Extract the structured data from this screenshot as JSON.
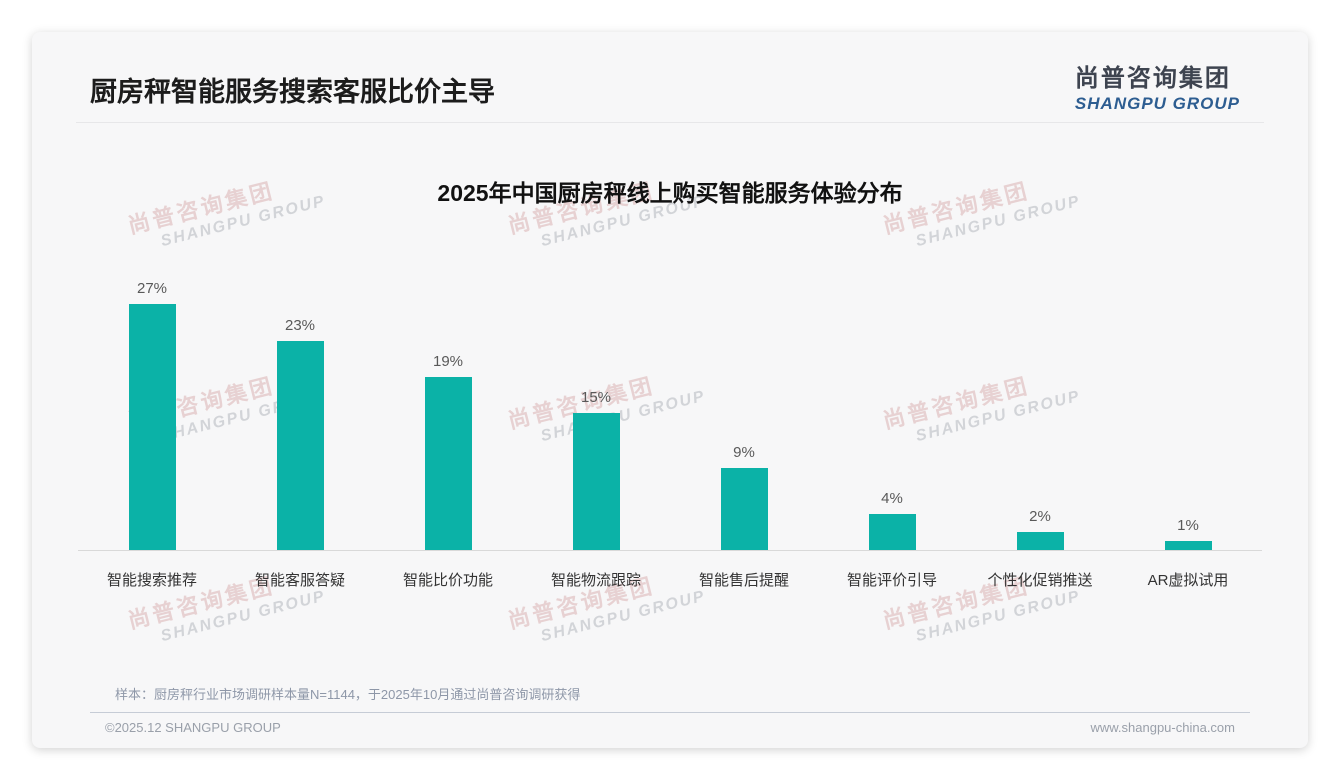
{
  "header": {
    "title": "厨房秤智能服务搜索客服比价主导"
  },
  "logo": {
    "cn": "尚普咨询集团",
    "en": "SHANGPU GROUP"
  },
  "watermark": {
    "cn": "尚普咨询集团",
    "en": "SHANGPU GROUP"
  },
  "chart_data": {
    "type": "bar",
    "title": "2025年中国厨房秤线上购买智能服务体验分布",
    "categories": [
      "智能搜索推荐",
      "智能客服答疑",
      "智能比价功能",
      "智能物流跟踪",
      "智能售后提醒",
      "智能评价引导",
      "个性化促销推送",
      "AR虚拟试用"
    ],
    "values": [
      27,
      23,
      19,
      15,
      9,
      4,
      2,
      1
    ],
    "value_labels": [
      "27%",
      "23%",
      "19%",
      "15%",
      "9%",
      "4%",
      "2%",
      "1%"
    ],
    "unit": "%",
    "bar_color": "#0bb2a7",
    "value_label_color": "#595959",
    "ylim": [
      0,
      30
    ],
    "grid": false,
    "legend": "none",
    "xlabel": "",
    "ylabel": ""
  },
  "note": "样本：厨房秤行业市场调研样本量N=1144，于2025年10月通过尚普咨询调研获得",
  "footer": {
    "copyright": "©2025.12 SHANGPU GROUP",
    "website": "www.shangpu-china.com"
  }
}
